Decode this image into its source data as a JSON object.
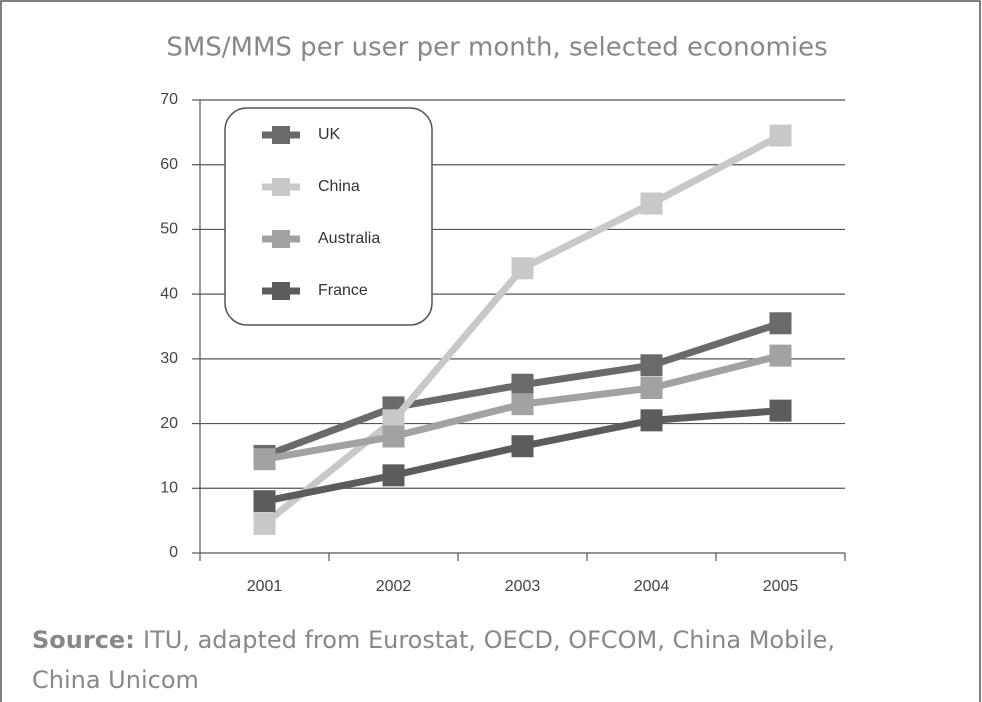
{
  "chart_data": {
    "type": "line",
    "title": "SMS/MMS per user per month, selected economies",
    "categories": [
      "2001",
      "2002",
      "2003",
      "2004",
      "2005"
    ],
    "series": [
      {
        "name": "UK",
        "color": "#6a6a6a",
        "values": [
          15,
          22.5,
          26,
          29,
          35.5
        ]
      },
      {
        "name": "China",
        "color": "#c8c8c8",
        "values": [
          4.5,
          20.5,
          44,
          54,
          64.5
        ]
      },
      {
        "name": "Australia",
        "color": "#a2a2a2",
        "values": [
          14.5,
          18,
          23,
          25.5,
          30.5
        ]
      },
      {
        "name": "France",
        "color": "#5c5c5c",
        "values": [
          8,
          12,
          16.5,
          20.5,
          22
        ]
      }
    ],
    "ylim": [
      0,
      70
    ],
    "yticks": [
      0,
      10,
      20,
      30,
      40,
      50,
      60,
      70
    ],
    "grid": true,
    "legend": "top-left",
    "source_label": "Source:",
    "source_lines": [
      "ITU, adapted from Eurostat, OECD, OFCOM, China Mobile,",
      "China Unicom"
    ]
  }
}
